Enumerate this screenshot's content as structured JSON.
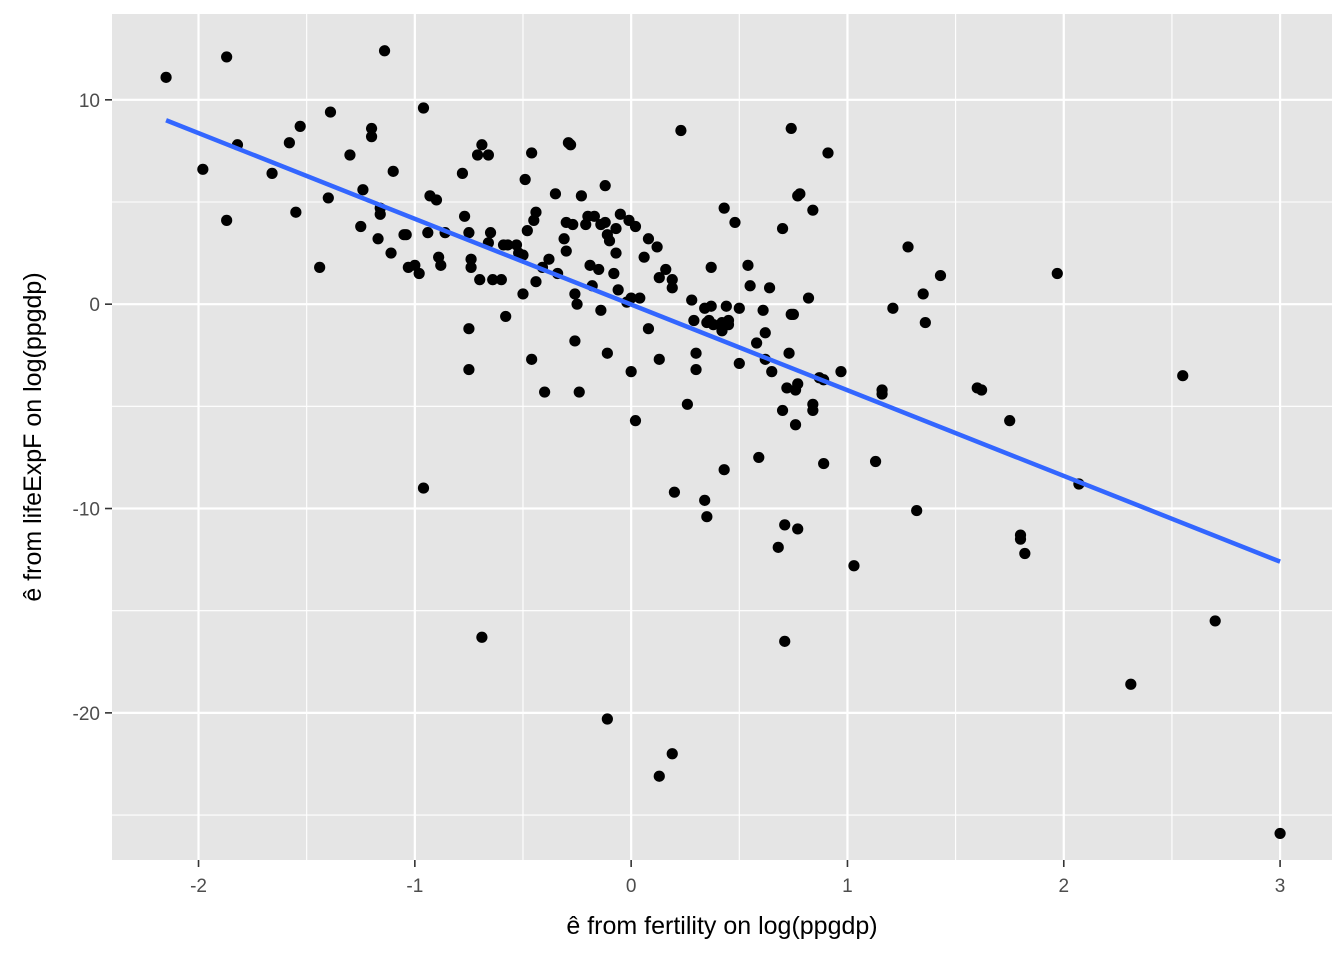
{
  "chart_data": {
    "type": "scatter",
    "title": "",
    "xlabel": "ê from fertility on log(ppgdp)",
    "ylabel": "ê from lifeExpF on log(ppgdp)",
    "xlim": [
      -2.4,
      3.24
    ],
    "ylim": [
      -27.2,
      14.2
    ],
    "x_ticks": [
      -2,
      -1,
      0,
      1,
      2,
      3
    ],
    "x_tick_labels": [
      "-2",
      "-1",
      "0",
      "1",
      "2",
      "3"
    ],
    "y_ticks": [
      -20,
      -10,
      0,
      10
    ],
    "y_tick_labels": [
      "-20",
      "-10",
      "0",
      "10"
    ],
    "grid": true,
    "legend": "none",
    "colors": {
      "panel": "#e5e5e5",
      "grid": "#ffffff",
      "point": "#000000",
      "fit_line": "#3366ff",
      "tick": "#4d4d4d"
    },
    "fit_line": {
      "x": [
        -2.15,
        3.0
      ],
      "y": [
        9.0,
        -12.6
      ]
    },
    "points": [
      [
        -2.15,
        11.1
      ],
      [
        -1.98,
        6.6
      ],
      [
        -1.87,
        12.1
      ],
      [
        -1.87,
        4.1
      ],
      [
        -1.82,
        7.8
      ],
      [
        -1.66,
        6.4
      ],
      [
        -1.58,
        7.9
      ],
      [
        -1.55,
        4.5
      ],
      [
        -1.53,
        8.7
      ],
      [
        -1.44,
        1.8
      ],
      [
        -1.4,
        5.2
      ],
      [
        -1.39,
        9.4
      ],
      [
        -1.3,
        7.3
      ],
      [
        -1.25,
        3.8
      ],
      [
        -1.24,
        5.6
      ],
      [
        -1.2,
        8.2
      ],
      [
        -1.2,
        8.6
      ],
      [
        -1.17,
        3.2
      ],
      [
        -1.16,
        4.7
      ],
      [
        -1.16,
        4.4
      ],
      [
        -1.14,
        12.4
      ],
      [
        -1.11,
        2.5
      ],
      [
        -1.1,
        6.5
      ],
      [
        -1.05,
        3.4
      ],
      [
        -1.04,
        3.4
      ],
      [
        -1.03,
        1.8
      ],
      [
        -1.0,
        1.9
      ],
      [
        -0.98,
        1.5
      ],
      [
        -0.96,
        9.6
      ],
      [
        -0.94,
        3.5
      ],
      [
        -0.93,
        5.3
      ],
      [
        -0.9,
        5.1
      ],
      [
        -0.89,
        2.3
      ],
      [
        -0.88,
        1.9
      ],
      [
        -0.86,
        3.5
      ],
      [
        -0.78,
        6.4
      ],
      [
        -0.77,
        4.3
      ],
      [
        -0.75,
        3.5
      ],
      [
        -0.74,
        2.2
      ],
      [
        -0.74,
        1.8
      ],
      [
        -0.75,
        -1.2
      ],
      [
        -0.75,
        -3.2
      ],
      [
        -0.71,
        7.3
      ],
      [
        -0.7,
        1.2
      ],
      [
        -0.69,
        7.8
      ],
      [
        -0.66,
        7.3
      ],
      [
        -0.66,
        3.0
      ],
      [
        -0.65,
        3.5
      ],
      [
        -0.64,
        1.2
      ],
      [
        -0.6,
        1.2
      ],
      [
        -0.59,
        2.9
      ],
      [
        -0.57,
        2.9
      ],
      [
        -0.58,
        -0.6
      ],
      [
        -0.53,
        2.9
      ],
      [
        -0.52,
        2.5
      ],
      [
        -0.5,
        2.4
      ],
      [
        -0.5,
        0.5
      ],
      [
        -0.48,
        3.6
      ],
      [
        -0.49,
        6.1
      ],
      [
        -0.46,
        7.4
      ],
      [
        -0.45,
        4.1
      ],
      [
        -0.44,
        4.5
      ],
      [
        -0.44,
        1.1
      ],
      [
        -0.46,
        -2.7
      ],
      [
        -0.4,
        -4.3
      ],
      [
        -0.41,
        1.8
      ],
      [
        -0.38,
        2.2
      ],
      [
        -0.35,
        5.4
      ],
      [
        -0.34,
        1.5
      ],
      [
        -0.31,
        3.2
      ],
      [
        -0.3,
        2.6
      ],
      [
        -0.3,
        4.0
      ],
      [
        -0.29,
        7.9
      ],
      [
        -0.28,
        7.8
      ],
      [
        -0.27,
        3.9
      ],
      [
        -0.26,
        0.5
      ],
      [
        -0.26,
        -1.8
      ],
      [
        -0.25,
        0.0
      ],
      [
        -0.24,
        -4.3
      ],
      [
        -0.23,
        5.3
      ],
      [
        -0.21,
        3.9
      ],
      [
        -0.2,
        4.3
      ],
      [
        -0.18,
        0.9
      ],
      [
        -0.17,
        4.3
      ],
      [
        -0.15,
        1.7
      ],
      [
        -0.14,
        3.9
      ],
      [
        -0.14,
        -0.3
      ],
      [
        -0.12,
        4.0
      ],
      [
        -0.12,
        5.8
      ],
      [
        -0.11,
        3.4
      ],
      [
        -0.11,
        -2.4
      ],
      [
        -0.1,
        3.1
      ],
      [
        -0.08,
        1.5
      ],
      [
        -0.07,
        2.5
      ],
      [
        -0.06,
        0.7
      ],
      [
        -0.05,
        4.4
      ],
      [
        -0.02,
        0.1
      ],
      [
        -0.01,
        4.1
      ],
      [
        0.0,
        0.3
      ],
      [
        0.02,
        3.8
      ],
      [
        0.04,
        0.3
      ],
      [
        0.06,
        2.3
      ],
      [
        0.08,
        3.2
      ],
      [
        0.08,
        -1.2
      ],
      [
        0.13,
        1.3
      ],
      [
        0.13,
        -2.7
      ],
      [
        0.16,
        1.7
      ],
      [
        0.19,
        1.2
      ],
      [
        0.19,
        0.8
      ],
      [
        0.0,
        -3.3
      ],
      [
        0.02,
        -5.7
      ],
      [
        0.23,
        8.5
      ],
      [
        0.26,
        -4.9
      ],
      [
        0.28,
        0.2
      ],
      [
        0.29,
        -0.8
      ],
      [
        0.3,
        -2.4
      ],
      [
        0.3,
        -3.2
      ],
      [
        0.34,
        -0.2
      ],
      [
        0.35,
        -0.9
      ],
      [
        0.36,
        -0.8
      ],
      [
        0.37,
        -0.1
      ],
      [
        0.37,
        1.8
      ],
      [
        0.38,
        -1.0
      ],
      [
        0.34,
        -9.6
      ],
      [
        0.35,
        -10.4
      ],
      [
        0.42,
        -0.9
      ],
      [
        0.42,
        -1.3
      ],
      [
        0.43,
        4.7
      ],
      [
        0.44,
        -0.1
      ],
      [
        0.45,
        -1.0
      ],
      [
        0.45,
        -0.8
      ],
      [
        0.48,
        4.0
      ],
      [
        0.5,
        -0.2
      ],
      [
        0.5,
        -2.9
      ],
      [
        0.54,
        1.9
      ],
      [
        0.55,
        0.9
      ],
      [
        0.58,
        -1.9
      ],
      [
        0.59,
        -7.5
      ],
      [
        0.61,
        -0.3
      ],
      [
        0.62,
        -1.4
      ],
      [
        0.62,
        -2.7
      ],
      [
        0.64,
        0.8
      ],
      [
        0.65,
        -3.3
      ],
      [
        0.68,
        -11.9
      ],
      [
        0.7,
        3.7
      ],
      [
        0.7,
        -5.2
      ],
      [
        0.71,
        -10.8
      ],
      [
        0.71,
        -16.5
      ],
      [
        0.72,
        -4.1
      ],
      [
        0.73,
        -2.4
      ],
      [
        0.74,
        8.6
      ],
      [
        0.74,
        -0.5
      ],
      [
        0.75,
        -0.5
      ],
      [
        0.76,
        -4.2
      ],
      [
        0.77,
        -3.9
      ],
      [
        0.76,
        -5.9
      ],
      [
        0.77,
        -11.0
      ],
      [
        0.77,
        5.3
      ],
      [
        0.78,
        5.4
      ],
      [
        0.82,
        0.3
      ],
      [
        0.84,
        4.6
      ],
      [
        0.84,
        -4.9
      ],
      [
        0.84,
        -5.2
      ],
      [
        0.87,
        -3.6
      ],
      [
        0.89,
        -3.7
      ],
      [
        0.89,
        -7.8
      ],
      [
        0.91,
        7.4
      ],
      [
        0.97,
        -3.3
      ],
      [
        1.03,
        -12.8
      ],
      [
        1.13,
        -7.7
      ],
      [
        1.16,
        -4.2
      ],
      [
        1.16,
        -4.4
      ],
      [
        1.21,
        -0.2
      ],
      [
        1.28,
        2.8
      ],
      [
        1.32,
        -10.1
      ],
      [
        1.35,
        0.5
      ],
      [
        1.36,
        -0.9
      ],
      [
        1.43,
        1.4
      ],
      [
        1.6,
        -4.1
      ],
      [
        1.62,
        -4.2
      ],
      [
        1.75,
        -5.7
      ],
      [
        1.8,
        -11.3
      ],
      [
        1.8,
        -11.5
      ],
      [
        1.82,
        -12.2
      ],
      [
        1.97,
        1.5
      ],
      [
        2.07,
        -8.8
      ],
      [
        2.31,
        -18.6
      ],
      [
        2.55,
        -3.5
      ],
      [
        2.7,
        -15.5
      ],
      [
        3.0,
        -25.9
      ],
      [
        -0.96,
        -9.0
      ],
      [
        -0.69,
        -16.3
      ],
      [
        -0.11,
        -20.3
      ],
      [
        0.13,
        -23.1
      ],
      [
        0.19,
        -22.0
      ],
      [
        0.2,
        -9.2
      ],
      [
        0.43,
        -8.1
      ],
      [
        0.12,
        2.8
      ],
      [
        -0.07,
        3.7
      ],
      [
        -0.19,
        1.9
      ]
    ]
  }
}
